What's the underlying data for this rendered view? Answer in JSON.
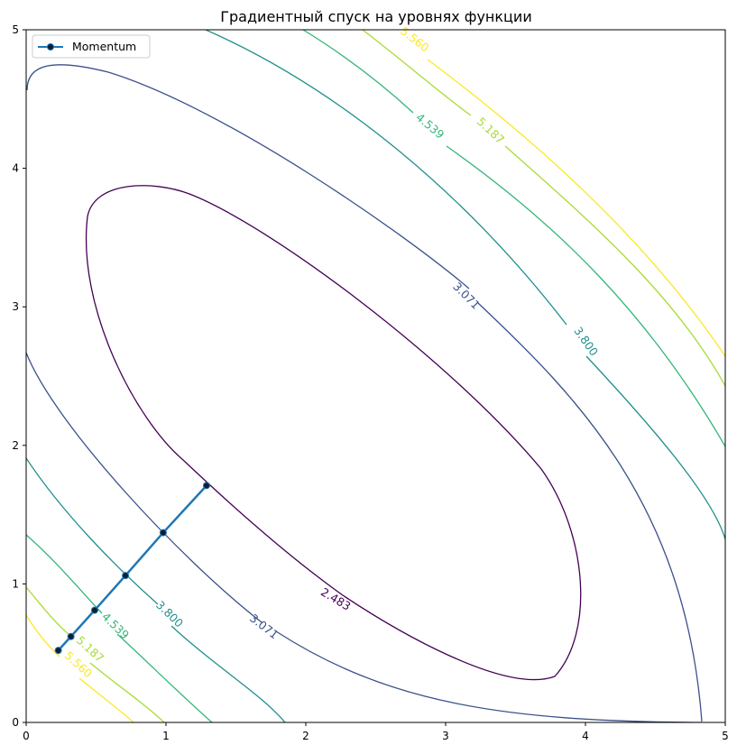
{
  "chart_data": {
    "type": "contour",
    "title": "Градиентный спуск на уровнях функции",
    "xlabel": "",
    "ylabel": "",
    "xlim": [
      0,
      5
    ],
    "ylim": [
      0,
      5
    ],
    "x_ticks": [
      "0",
      "1",
      "2",
      "3",
      "4",
      "5"
    ],
    "y_ticks": [
      "0",
      "1",
      "2",
      "3",
      "4",
      "5"
    ],
    "grid": false,
    "legend": {
      "placement": "top-left",
      "entries": [
        "Momentum"
      ]
    },
    "center": [
      2.55,
      2.05
    ],
    "contour_levels": [
      {
        "label": "2.483",
        "color": "#440154"
      },
      {
        "label": "3.071",
        "color": "#3b518b"
      },
      {
        "label": "3.800",
        "color": "#21908d"
      },
      {
        "label": "4.539",
        "color": "#35b779"
      },
      {
        "label": "5.187",
        "color": "#a8db34"
      },
      {
        "label": "5.560",
        "color": "#fde725"
      }
    ],
    "series": [
      {
        "name": "Momentum",
        "color": "#1f77b4",
        "marker_color": "#0b1f33",
        "x": [
          1.29,
          0.98,
          0.71,
          0.49,
          0.32,
          0.23
        ],
        "y": [
          1.71,
          1.37,
          1.06,
          0.81,
          0.62,
          0.52
        ]
      }
    ]
  }
}
